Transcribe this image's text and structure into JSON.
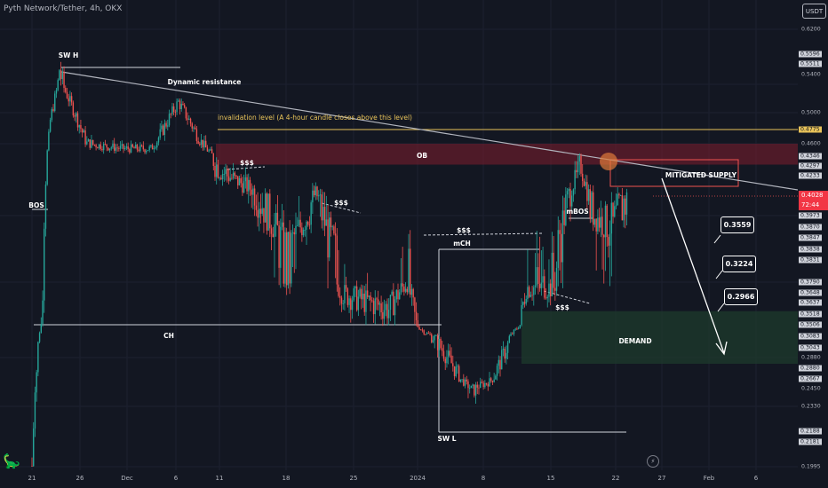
{
  "header": {
    "title": "Pyth Network/Tether, 4h, OKX",
    "currency_button": "USDT"
  },
  "price_axis": {
    "ticks": [
      "0.6200",
      "0.5596",
      "0.5511",
      "0.5400",
      "0.5000",
      "0.4775",
      "0.4600",
      "0.4346",
      "0.4297",
      "0.4233",
      "0.3973",
      "0.3870",
      "0.3847",
      "0.3838",
      "0.3831",
      "0.3790",
      "0.3648",
      "0.3637",
      "0.3518",
      "0.3506",
      "0.3083",
      "0.3043",
      "0.2880",
      "0.2880",
      "0.2667",
      "0.2450",
      "0.2330",
      "0.2188",
      "0.2181",
      "0.1995"
    ],
    "highlighted": [
      "0.5596",
      "0.5511",
      "0.4346",
      "0.4297",
      "0.4233",
      "0.3973",
      "0.3870",
      "0.3847",
      "0.3838",
      "0.3831",
      "0.3790",
      "0.3648",
      "0.3637",
      "0.3518",
      "0.3506",
      "0.3083",
      "0.3043",
      "0.2880",
      "0.2667",
      "0.2188",
      "0.2181"
    ],
    "invalidation_tick": "0.4775",
    "current_price": "0.4028",
    "countdown": "72:44"
  },
  "time_axis": {
    "labels": [
      "21",
      "26",
      "Dec",
      "6",
      "11",
      "18",
      "25",
      "2024",
      "8",
      "15",
      "22",
      "27",
      "Feb",
      "6"
    ]
  },
  "annotations": {
    "sw_h": "SW H",
    "dynamic_resistance": "Dynamic resistance",
    "invalidation": "invalidation level (A 4-hour candle closes above this level)",
    "ob": "OB",
    "bos": "BOS",
    "ch": "CH",
    "liq1": "$$$",
    "liq2": "$$$",
    "liq3": "$$$",
    "liq4": "$$$",
    "mch": "mCH",
    "mbos": "mBOS",
    "mitigated_supply": "MITIGATED SUPPLY",
    "demand": "DEMAND",
    "sw_l": "SW L"
  },
  "targets": [
    "0.3559",
    "0.3224",
    "0.2966"
  ],
  "colors": {
    "background": "#131722",
    "bull": "#26a69a",
    "bear": "#ef5350",
    "ob_zone": "#7f1d2d",
    "demand_zone": "#1e3b2c",
    "invalidation": "#e8c35a",
    "price_tag": "#f23645",
    "touch_circle": "#e07b39"
  },
  "chart_data": {
    "type": "candlestick",
    "title": "Pyth Network/Tether, 4h, OKX",
    "xlabel": "",
    "ylabel": "",
    "price_axis_side": "right",
    "x_range": [
      "Nov 21",
      "Feb 8"
    ],
    "y_range": [
      0.1995,
      0.62
    ],
    "path_key_points": [
      {
        "x": "Nov 21",
        "price": 0.2
      },
      {
        "x": "Nov 22",
        "price": 0.35
      },
      {
        "x": "Nov 23",
        "price": 0.49
      },
      {
        "x": "Nov 24",
        "price": 0.55
      },
      {
        "x": "Nov 27",
        "price": 0.46
      },
      {
        "x": "Dec 1",
        "price": 0.45
      },
      {
        "x": "Dec 4",
        "price": 0.45
      },
      {
        "x": "Dec 7",
        "price": 0.515
      },
      {
        "x": "Dec 11",
        "price": 0.43
      },
      {
        "x": "Dec 15",
        "price": 0.41
      },
      {
        "x": "Dec 19",
        "price": 0.38
      },
      {
        "x": "Dec 22",
        "price": 0.405
      },
      {
        "x": "Dec 25",
        "price": 0.37
      },
      {
        "x": "Dec 30",
        "price": 0.36
      },
      {
        "x": "Jan 1",
        "price": 0.38
      },
      {
        "x": "Jan 3",
        "price": 0.32
      },
      {
        "x": "Jan 6",
        "price": 0.28
      },
      {
        "x": "Jan 8",
        "price": 0.245
      },
      {
        "x": "Jan 10",
        "price": 0.26
      },
      {
        "x": "Jan 12",
        "price": 0.3
      },
      {
        "x": "Jan 14",
        "price": 0.375
      },
      {
        "x": "Jan 17",
        "price": 0.375
      },
      {
        "x": "Jan 20",
        "price": 0.43
      },
      {
        "x": "Jan 21",
        "price": 0.4
      },
      {
        "x": "Jan 23",
        "price": 0.39
      },
      {
        "x": "Jan 25",
        "price": 0.4028
      }
    ],
    "levels": [
      {
        "label": "invalidation level (A 4-hour candle closes above this level)",
        "price": 0.4775
      },
      {
        "label": "SW H",
        "price": 0.5596
      },
      {
        "label": "CH",
        "price": 0.3506
      },
      {
        "label": "SW L",
        "price": 0.2188
      }
    ],
    "zones": [
      {
        "label": "OB",
        "from": 0.4297,
        "to": 0.46
      },
      {
        "label": "MITIGATED SUPPLY",
        "from": 0.4233,
        "to": 0.4346
      },
      {
        "label": "DEMAND",
        "from": 0.288,
        "to": 0.3518
      }
    ],
    "trendline": {
      "label": "Dynamic resistance",
      "from": {
        "x": "Nov 24",
        "price": 0.5511
      },
      "to": {
        "x": "Feb 8",
        "price": 0.4028
      }
    },
    "targets": [
      0.3559,
      0.3224,
      0.2966
    ]
  }
}
